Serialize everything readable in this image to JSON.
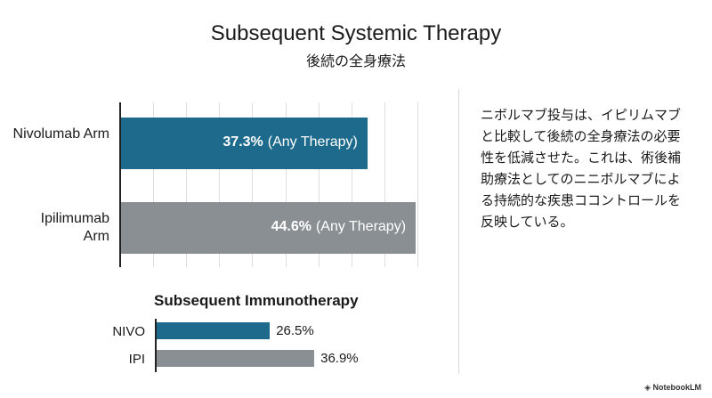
{
  "title": "Subsequent Systemic Therapy",
  "subtitle": "後続の全身療法",
  "chart_data": [
    {
      "type": "bar",
      "orientation": "horizontal",
      "categories": [
        "Nivolumab Arm",
        "Ipilimumab Arm"
      ],
      "values": [
        37.3,
        44.6
      ],
      "value_labels": [
        "37.3%",
        "44.6%"
      ],
      "value_note": "(Any Therapy)",
      "colors": [
        "#1d6a8c",
        "#8a8f94"
      ],
      "xlim": [
        0,
        45
      ],
      "xticks": [
        0,
        5,
        10,
        15,
        20,
        25,
        30,
        35,
        40,
        45
      ],
      "grid": true
    },
    {
      "type": "bar",
      "orientation": "horizontal",
      "title": "Subsequent Immunotherapy",
      "categories": [
        "NIVO",
        "IPI"
      ],
      "values": [
        26.5,
        36.9
      ],
      "value_labels": [
        "26.5%",
        "36.9%"
      ],
      "colors": [
        "#1d6a8c",
        "#8a8f94"
      ],
      "xlim": [
        0,
        40
      ],
      "grid": false
    }
  ],
  "note": "ニボルマブ投与は、イピリムマブと比較して後続の全身療法の必要性を低減させた。これは、術後補助療法としてのニニボルマブによる持続的な疾患ココントロールを反映している。",
  "footer": "NotebookLM"
}
